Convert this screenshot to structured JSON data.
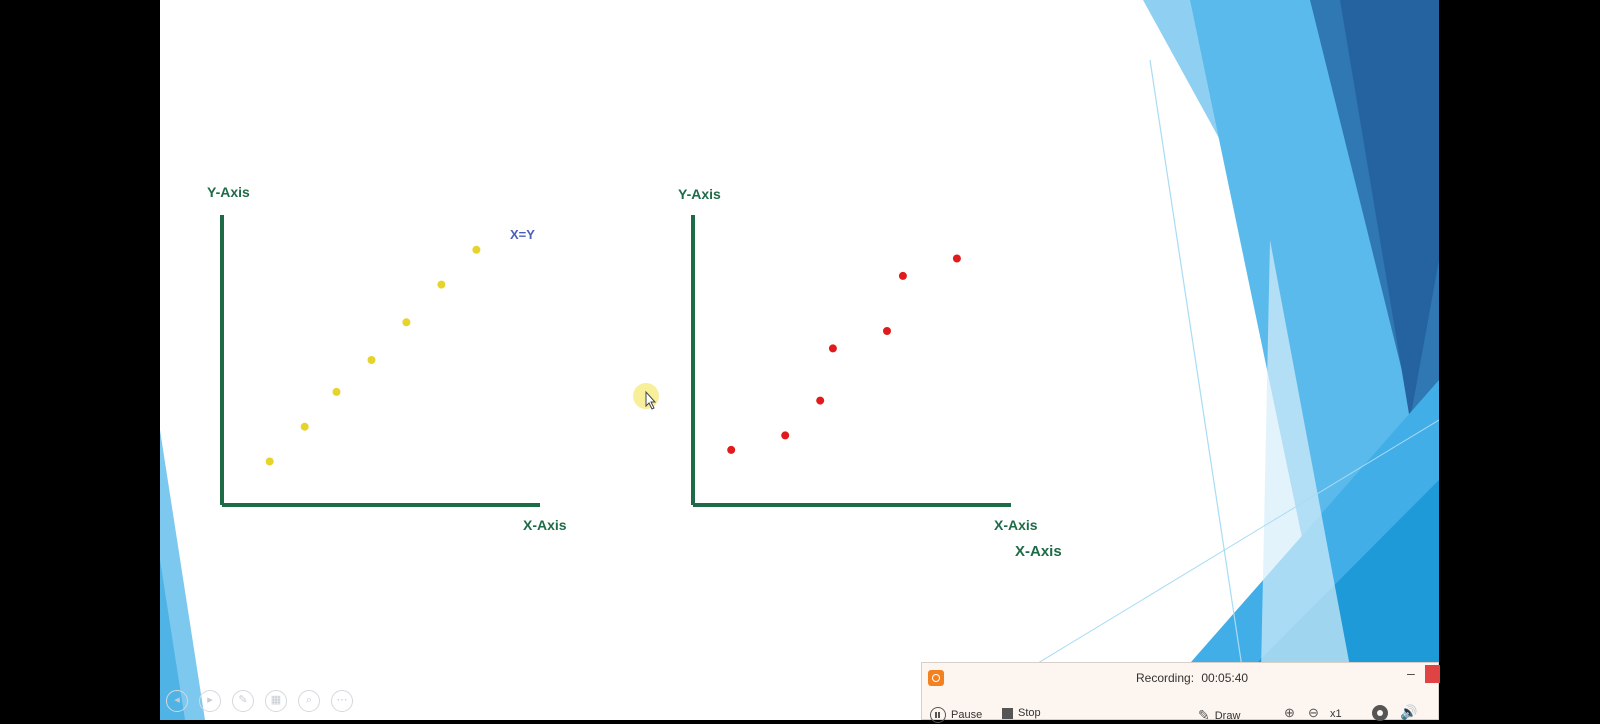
{
  "slide": {
    "chart_left": {
      "y_axis_label": "Y-Axis",
      "x_axis_label": "X-Axis",
      "equation_label": "X=Y",
      "point_color": "#e6d42a"
    },
    "chart_right": {
      "y_axis_label": "Y-Axis",
      "x_axis_label": "X-Axis",
      "x_axis_label_extra": "X-Axis",
      "point_color": "#e11b1b"
    },
    "axis_color": "#1e6b47"
  },
  "chart_data": [
    {
      "type": "scatter",
      "title": "",
      "xlabel": "X-Axis",
      "ylabel": "Y-Axis",
      "annotation": "X=Y",
      "xlim": [
        0,
        10
      ],
      "ylim": [
        0,
        10
      ],
      "x": [
        1.5,
        2.6,
        3.6,
        4.7,
        5.8,
        6.9,
        8.0
      ],
      "y": [
        1.5,
        2.7,
        3.9,
        5.0,
        6.3,
        7.6,
        8.8
      ]
    },
    {
      "type": "scatter",
      "title": "",
      "xlabel": "X-Axis",
      "ylabel": "Y-Axis",
      "xlim": [
        0,
        10
      ],
      "ylim": [
        0,
        10
      ],
      "x": [
        1.2,
        2.9,
        4.0,
        4.4,
        6.1,
        6.6,
        8.3
      ],
      "y": [
        1.9,
        2.4,
        3.6,
        5.4,
        6.0,
        7.9,
        8.5
      ]
    }
  ],
  "nav_tools": {
    "icons": [
      "prev-slide-icon",
      "next-slide-icon",
      "pen-icon",
      "slides-grid-icon",
      "zoom-icon",
      "more-icon"
    ]
  },
  "recorder": {
    "status_label": "Recording:",
    "timer": "00:05:40",
    "minimize": "–",
    "pause_label": "Pause",
    "stop_label": "Stop",
    "draw_label": "Draw",
    "zoom_level": "x1",
    "brand_color": "#f4811f",
    "close_color": "#e04343"
  }
}
